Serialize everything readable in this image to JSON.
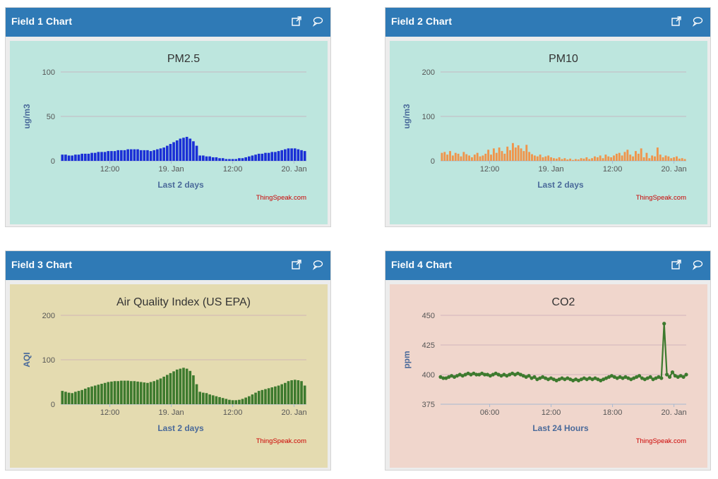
{
  "panels": [
    {
      "header": "Field 1 Chart",
      "bg": "#bde6de",
      "chart_data": {
        "type": "bar",
        "title": "PM2.5",
        "ylabel": "ug/m3",
        "xlabel": "Last 2 days",
        "credit": "ThingSpeak.com",
        "color": "#1a2fd6",
        "ylim": [
          0,
          100
        ],
        "yticks": [
          0,
          50,
          100
        ],
        "xticks": [
          "12:00",
          "19. Jan",
          "12:00",
          "20. Jan"
        ],
        "values": [
          7,
          7,
          6,
          6,
          7,
          7,
          8,
          8,
          8,
          9,
          9,
          10,
          10,
          10,
          11,
          11,
          11,
          12,
          12,
          12,
          13,
          13,
          13,
          13,
          12,
          12,
          12,
          11,
          12,
          13,
          14,
          15,
          17,
          19,
          21,
          23,
          25,
          26,
          27,
          25,
          22,
          17,
          6,
          6,
          5,
          5,
          4,
          4,
          3,
          3,
          2,
          2,
          2,
          2,
          3,
          3,
          4,
          5,
          6,
          7,
          8,
          8,
          9,
          9,
          10,
          10,
          11,
          12,
          13,
          14,
          14,
          14,
          13,
          12,
          11
        ]
      }
    },
    {
      "header": "Field 2 Chart",
      "bg": "#bde6de",
      "chart_data": {
        "type": "bar",
        "title": "PM10",
        "ylabel": "ug/m3",
        "xlabel": "Last 2 days",
        "credit": "ThingSpeak.com",
        "color": "#f0944a",
        "ylim": [
          0,
          200
        ],
        "yticks": [
          0,
          100,
          200
        ],
        "xticks": [
          "12:00",
          "19. Jan",
          "12:00",
          "20. Jan"
        ],
        "values": [
          18,
          20,
          14,
          22,
          12,
          18,
          16,
          10,
          20,
          15,
          12,
          8,
          14,
          18,
          10,
          12,
          16,
          25,
          14,
          28,
          18,
          30,
          22,
          16,
          32,
          24,
          40,
          30,
          35,
          28,
          22,
          36,
          20,
          15,
          12,
          10,
          14,
          8,
          10,
          12,
          8,
          6,
          5,
          8,
          4,
          6,
          3,
          5,
          2,
          4,
          3,
          6,
          5,
          8,
          4,
          6,
          10,
          8,
          12,
          6,
          14,
          10,
          8,
          12,
          16,
          18,
          12,
          20,
          25,
          14,
          10,
          22,
          16,
          28,
          8,
          18,
          6,
          12,
          10,
          30,
          14,
          8,
          12,
          10,
          6,
          8,
          10,
          5,
          6,
          4
        ]
      }
    },
    {
      "header": "Field 3 Chart",
      "bg": "#e4dbb0",
      "chart_data": {
        "type": "bar",
        "title": "Air Quality Index (US EPA)",
        "ylabel": "AQI",
        "xlabel": "Last 2 days",
        "credit": "ThingSpeak.com",
        "color": "#3d7a2e",
        "ylim": [
          0,
          200
        ],
        "yticks": [
          0,
          100,
          200
        ],
        "xticks": [
          "12:00",
          "19. Jan",
          "12:00",
          "20. Jan"
        ],
        "values": [
          30,
          28,
          26,
          25,
          28,
          30,
          32,
          35,
          38,
          40,
          42,
          44,
          46,
          48,
          50,
          51,
          52,
          52,
          53,
          53,
          53,
          52,
          52,
          51,
          50,
          49,
          48,
          50,
          52,
          55,
          58,
          62,
          66,
          70,
          74,
          78,
          80,
          82,
          80,
          75,
          65,
          45,
          28,
          26,
          25,
          22,
          20,
          18,
          16,
          14,
          12,
          10,
          9,
          9,
          10,
          12,
          15,
          18,
          22,
          26,
          30,
          32,
          34,
          36,
          38,
          40,
          42,
          45,
          48,
          52,
          54,
          55,
          54,
          52,
          42
        ]
      }
    },
    {
      "header": "Field 4 Chart",
      "bg": "#f0d6cc",
      "chart_data": {
        "type": "line",
        "title": "CO2",
        "ylabel": "ppm",
        "xlabel": "Last 24 Hours",
        "credit": "ThingSpeak.com",
        "color": "#3d7a2e",
        "ylim": [
          375,
          450
        ],
        "yticks": [
          375,
          400,
          425,
          450
        ],
        "xticks": [
          "06:00",
          "12:00",
          "18:00",
          "20. Jan"
        ],
        "values": [
          398,
          397,
          397,
          398,
          399,
          398,
          399,
          400,
          399,
          400,
          401,
          400,
          401,
          400,
          400,
          401,
          400,
          400,
          399,
          400,
          401,
          400,
          399,
          400,
          399,
          400,
          401,
          400,
          401,
          400,
          399,
          398,
          399,
          397,
          398,
          396,
          397,
          398,
          397,
          396,
          397,
          396,
          395,
          396,
          397,
          396,
          397,
          396,
          395,
          396,
          395,
          396,
          397,
          396,
          397,
          396,
          397,
          396,
          395,
          396,
          397,
          398,
          399,
          398,
          397,
          398,
          397,
          398,
          397,
          396,
          397,
          398,
          399,
          397,
          396,
          397,
          398,
          396,
          397,
          398,
          397,
          443,
          400,
          398,
          402,
          399,
          398,
          399,
          398,
          400
        ]
      }
    }
  ]
}
